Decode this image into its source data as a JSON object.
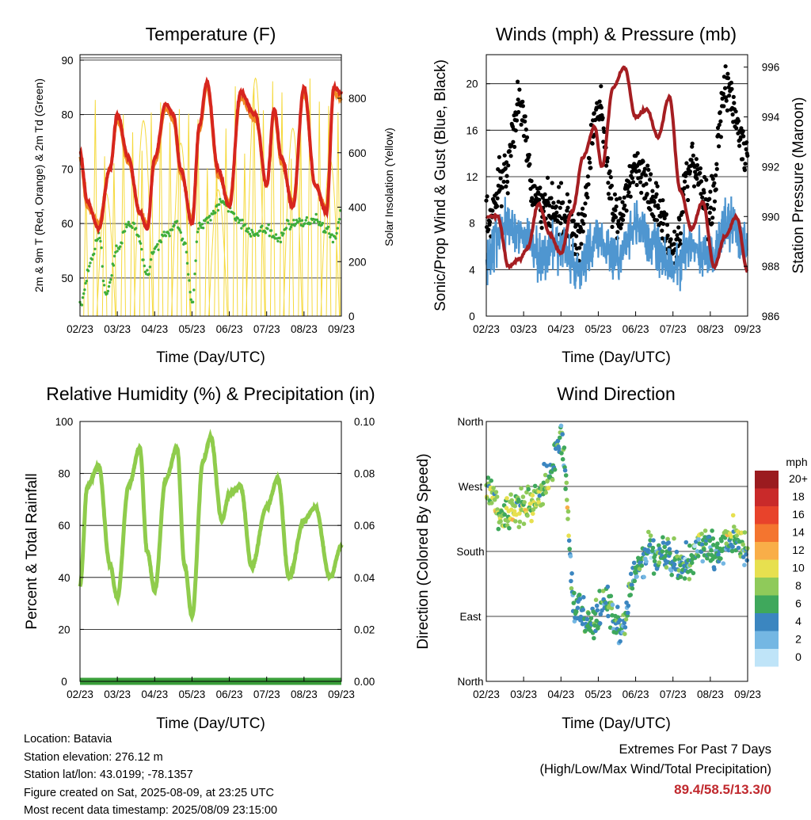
{
  "colors": {
    "temp_red": "#d7261e",
    "temp_orange": "#f08a24",
    "dewpoint_green": "#3fae3a",
    "solar_yellow": "#f5d93c",
    "wind_blue": "#4f96d0",
    "gust_black": "#000000",
    "pressure_maroon": "#a51e22",
    "rh_green": "#8fcc4c",
    "precip_green": "#3a9f3a",
    "extreme_text": "#c0282d"
  },
  "x_ticks": [
    "02/23",
    "03/23",
    "04/23",
    "05/23",
    "06/23",
    "07/23",
    "08/23",
    "09/23"
  ],
  "chart_data": [
    {
      "type": "line",
      "title": "Temperature (F)",
      "xlabel": "Time (Day/UTC)",
      "ylabel": "2m & 9m T (Red, Orange) & 2m Td (Green)",
      "ylabel_right": "Solar Insolation (Yellow)",
      "ylim": [
        43,
        91
      ],
      "ylim_right": [
        0,
        960
      ],
      "yticks": [
        "50",
        "60",
        "70",
        "80",
        "90"
      ],
      "yticks_right": [
        "0",
        "200",
        "400",
        "600",
        "800"
      ],
      "grid": true,
      "series": [
        {
          "name": "2m T",
          "color": "#d7261e",
          "x": [
            0,
            0.2,
            0.5,
            0.8,
            1.0,
            1.3,
            1.6,
            1.8,
            2.0,
            2.3,
            2.5,
            2.7,
            3.0,
            3.2,
            3.4,
            3.7,
            4.0,
            4.3,
            4.7,
            5.0,
            5.2,
            5.4,
            5.7,
            6.0,
            6.3,
            6.6,
            6.8,
            7.0
          ],
          "y": [
            73,
            64,
            59,
            70,
            80,
            72,
            62,
            59,
            72,
            82,
            80,
            70,
            60,
            78,
            86,
            70,
            63,
            84,
            80,
            67,
            81,
            72,
            63,
            85,
            67,
            62,
            85,
            84
          ]
        },
        {
          "name": "9m T",
          "color": "#f08a24",
          "x": [
            0,
            0.2,
            0.5,
            0.8,
            1.0,
            1.3,
            1.6,
            1.8,
            2.0,
            2.3,
            2.5,
            2.7,
            3.0,
            3.2,
            3.4,
            3.7,
            4.0,
            4.3,
            4.7,
            5.0,
            5.2,
            5.4,
            5.7,
            6.0,
            6.3,
            6.6,
            6.8,
            7.0
          ],
          "y": [
            72,
            63,
            60,
            70,
            79,
            71,
            62,
            60,
            71,
            81,
            79,
            69,
            61,
            77,
            85,
            69,
            64,
            83,
            79,
            67,
            80,
            71,
            64,
            84,
            67,
            63,
            84,
            83
          ]
        },
        {
          "name": "2m Td",
          "color": "#3fae3a",
          "x": [
            0,
            0.3,
            0.5,
            0.7,
            1.0,
            1.3,
            1.5,
            1.8,
            2.0,
            2.3,
            2.6,
            2.8,
            3.0,
            3.2,
            3.5,
            3.8,
            4.0,
            4.3,
            4.6,
            5.0,
            5.3,
            5.6,
            6.0,
            6.3,
            6.6,
            6.8,
            7.0
          ],
          "y": [
            45,
            53,
            58,
            47,
            55,
            60,
            59,
            51,
            55,
            58,
            60,
            56,
            46,
            60,
            61,
            64,
            63,
            60,
            58,
            59,
            57,
            60,
            60,
            61,
            59,
            57,
            62
          ]
        },
        {
          "name": "Solar",
          "color": "#f5d93c",
          "peaks": [
            820,
            830,
            870,
            780,
            960,
            890,
            900,
            850
          ],
          "y_units": "right"
        }
      ]
    },
    {
      "type": "scatter",
      "title": "Winds (mph) & Pressure (mb)",
      "xlabel": "Time (Day/UTC)",
      "ylabel": "Sonic/Prop Wind & Gust (Blue, Black)",
      "ylabel_right": "Station Pressure (Maroon)",
      "ylim": [
        0,
        22.5
      ],
      "ylim_right": [
        986,
        996.5
      ],
      "yticks": [
        "0",
        "4",
        "8",
        "12",
        "16",
        "20"
      ],
      "yticks_right": [
        "986",
        "988",
        "990",
        "992",
        "994",
        "996"
      ],
      "grid": true,
      "series": [
        {
          "name": "Wind",
          "color": "#4f96d0",
          "x": [
            0,
            0.5,
            1.0,
            1.5,
            2.0,
            2.5,
            3.0,
            3.5,
            4.0,
            4.5,
            5.0,
            5.5,
            6.0,
            6.5,
            7.0
          ],
          "y": [
            5,
            8,
            7,
            5,
            6,
            4,
            7,
            5,
            8,
            6,
            4,
            6,
            5,
            8,
            6
          ]
        },
        {
          "name": "Gust",
          "color": "#000000",
          "x": [
            0,
            0.5,
            0.9,
            1.3,
            2.0,
            2.5,
            3.0,
            3.5,
            4.0,
            4.5,
            5.0,
            5.5,
            6.0,
            6.4,
            7.0
          ],
          "y": [
            8,
            12,
            18,
            10,
            9,
            7,
            18,
            8,
            13,
            10,
            6,
            13,
            9,
            20,
            14
          ]
        },
        {
          "name": "Pressure",
          "color": "#a51e22",
          "x": [
            0,
            0.3,
            0.6,
            0.9,
            1.1,
            1.4,
            1.7,
            2.0,
            2.3,
            2.6,
            2.9,
            3.1,
            3.4,
            3.7,
            4.0,
            4.3,
            4.6,
            4.9,
            5.2,
            5.5,
            5.8,
            6.1,
            6.4,
            6.7,
            7.0
          ],
          "y": [
            990,
            990,
            988,
            988.3,
            988.7,
            990.5,
            989.3,
            988.5,
            990.2,
            992.4,
            993.6,
            992,
            995.2,
            996,
            994,
            994.3,
            993.2,
            994.8,
            991,
            989.5,
            990.6,
            988,
            989.2,
            990,
            987.8
          ]
        }
      ]
    },
    {
      "type": "line",
      "title": "Relative Humidity (%) & Precipitation (in)",
      "xlabel": "Time (Day/UTC)",
      "ylabel": "Percent & Total Rainfall",
      "ylim": [
        0,
        100
      ],
      "ylim_right": [
        0,
        0.1
      ],
      "yticks": [
        "0",
        "20",
        "40",
        "60",
        "80",
        "100"
      ],
      "yticks_right": [
        "0.00",
        "0.02",
        "0.04",
        "0.06",
        "0.08",
        "0.10"
      ],
      "grid": true,
      "series": [
        {
          "name": "RH",
          "color": "#8fcc4c",
          "x": [
            0,
            0.2,
            0.5,
            0.8,
            1.0,
            1.3,
            1.6,
            1.8,
            2.0,
            2.3,
            2.6,
            2.8,
            3.0,
            3.3,
            3.5,
            3.8,
            4.0,
            4.3,
            4.6,
            5.0,
            5.3,
            5.6,
            6.0,
            6.3,
            6.7,
            7.0
          ],
          "y": [
            37,
            75,
            83,
            45,
            32,
            75,
            90,
            50,
            35,
            78,
            90,
            45,
            25,
            85,
            94,
            62,
            72,
            75,
            44,
            67,
            78,
            40,
            62,
            67,
            40,
            52
          ]
        },
        {
          "name": "Precipitation",
          "color": "#3a9f3a",
          "x": [
            0,
            7.0
          ],
          "y": [
            0,
            0
          ],
          "y_units": "right"
        }
      ]
    },
    {
      "type": "scatter",
      "title": "Wind Direction",
      "xlabel": "Time (Day/UTC)",
      "ylabel": "Direction (Colored By Speed)",
      "yticks": [
        "North",
        "East",
        "South",
        "West",
        "North"
      ],
      "ylim": [
        0,
        360
      ],
      "grid": true,
      "colorbar": {
        "label": "mph",
        "levels": [
          "20+",
          "18",
          "16",
          "14",
          "12",
          "10",
          "8",
          "6",
          "4",
          "2",
          "0"
        ],
        "colors": [
          "#9b1b1f",
          "#c92a2a",
          "#e8432b",
          "#f4752f",
          "#f9ae48",
          "#e7e04f",
          "#8fca5a",
          "#3fa85c",
          "#3b86c0",
          "#74b7e3",
          "#bfe4f8"
        ]
      },
      "series": [
        {
          "name": "Direction",
          "x": [
            0.1,
            0.4,
            0.8,
            1.2,
            1.7,
            2.0,
            2.4,
            2.8,
            3.2,
            3.6,
            4.0,
            4.4,
            4.8,
            5.3,
            5.8,
            6.2,
            6.7,
            7.0
          ],
          "y": [
            265,
            225,
            240,
            245,
            280,
            340,
            100,
            80,
            110,
            70,
            150,
            180,
            175,
            160,
            190,
            180,
            200,
            180
          ]
        }
      ]
    }
  ],
  "info": {
    "location": "Location: Batavia",
    "elevation": "Station elevation: 276.12 m",
    "latlon": "Station lat/lon: 43.0199; -78.1357",
    "created": "Figure created on Sat, 2025-08-09, at 23:25 UTC",
    "recent": "Most recent data timestamp: 2025/08/09 23:15:00"
  },
  "extremes": {
    "line1": "Extremes For Past 7 Days",
    "line2": "(High/Low/Max Wind/Total Precipitation)",
    "values": "89.4/58.5/13.3/0"
  }
}
